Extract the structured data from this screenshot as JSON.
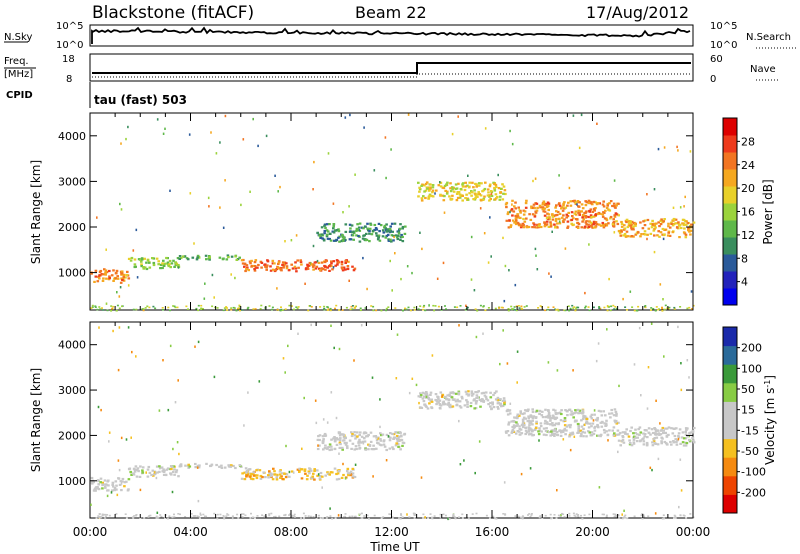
{
  "header": {
    "site": "Blackstone (fitACF)",
    "beam": "Beam 22",
    "date": "17/Aug/2012"
  },
  "panels": {
    "nsky": {
      "left_label": "N.Sky",
      "left_ticks": [
        "10^5",
        "10^0"
      ],
      "right_label": "N.Search",
      "right_ticks": [
        "10^5",
        "10^0"
      ]
    },
    "freq": {
      "left_label": "Freq.",
      "left_unit": "[MHz]",
      "left_ticks": [
        "18",
        "8"
      ],
      "right_label": "Nave",
      "right_ticks": [
        "60",
        "0"
      ]
    },
    "cpid": {
      "label": "CPID",
      "text": "tau (fast) 503"
    }
  },
  "chart_data": [
    {
      "type": "heatmap",
      "title": "",
      "xlabel": "Time UT",
      "ylabel": "Slant Range [km]",
      "x": [
        "00:00",
        "04:00",
        "08:00",
        "12:00",
        "16:00",
        "20:00",
        "00:00"
      ],
      "xlim": [
        0,
        24
      ],
      "y_ticks": [
        "4000",
        "3000",
        "2000",
        "1000"
      ],
      "ylim": [
        180,
        4500
      ],
      "colorbar": {
        "label": "Power [dB]",
        "ticks": [
          "28",
          "24",
          "20",
          "16",
          "12",
          "8",
          "4"
        ],
        "range": [
          0,
          30
        ],
        "colors": [
          "#0000ee",
          "#2222bb",
          "#2a5a9a",
          "#3a8e5e",
          "#5fb84a",
          "#9bd33c",
          "#e8d02a",
          "#f5a820",
          "#f27522",
          "#ee3a1c",
          "#dd0000"
        ]
      },
      "regions": [
        {
          "t": [
            0.0,
            1.5
          ],
          "r": [
            800,
            1100
          ],
          "v": 22
        },
        {
          "t": [
            1.5,
            3.5
          ],
          "r": [
            1100,
            1350
          ],
          "v": 14
        },
        {
          "t": [
            3.5,
            6.0
          ],
          "r": [
            1300,
            1400
          ],
          "v": 12
        },
        {
          "t": [
            6.0,
            10.5
          ],
          "r": [
            1050,
            1300
          ],
          "v": 24
        },
        {
          "t": [
            9.0,
            12.5
          ],
          "r": [
            1700,
            2100
          ],
          "v": 10
        },
        {
          "t": [
            13.0,
            16.5
          ],
          "r": [
            2600,
            3000
          ],
          "v": 18
        },
        {
          "t": [
            16.5,
            21.0
          ],
          "r": [
            2000,
            2600
          ],
          "v": 22
        },
        {
          "t": [
            21.0,
            24.0
          ],
          "r": [
            1800,
            2200
          ],
          "v": 20
        }
      ]
    },
    {
      "type": "heatmap",
      "title": "",
      "xlabel": "Time UT",
      "ylabel": "Slant Range [km]",
      "x": [
        "00:00",
        "04:00",
        "08:00",
        "12:00",
        "16:00",
        "20:00",
        "00:00"
      ],
      "xlim": [
        0,
        24
      ],
      "y_ticks": [
        "4000",
        "3000",
        "2000",
        "1000"
      ],
      "ylim": [
        180,
        4500
      ],
      "colorbar": {
        "label": "Velocity [m s^-1]",
        "ticks": [
          "200",
          "100",
          "50",
          "15",
          "-15",
          "-50",
          "-100",
          "-200"
        ],
        "range": [
          -250,
          250
        ],
        "colors": [
          "#dd0000",
          "#ee4400",
          "#f58a10",
          "#f5c020",
          "#c8c8c8",
          "#c8c8c8",
          "#88cc44",
          "#3a9a3a",
          "#2a6a9a",
          "#1a2aaa"
        ]
      },
      "regions": [
        {
          "t": [
            0.0,
            1.5
          ],
          "r": [
            800,
            1100
          ],
          "v": 0
        },
        {
          "t": [
            1.5,
            3.5
          ],
          "r": [
            1100,
            1350
          ],
          "v": 0
        },
        {
          "t": [
            3.5,
            6.0
          ],
          "r": [
            1300,
            1400
          ],
          "v": 0
        },
        {
          "t": [
            6.0,
            10.5
          ],
          "r": [
            1050,
            1300
          ],
          "v": -60
        },
        {
          "t": [
            9.0,
            12.5
          ],
          "r": [
            1700,
            2100
          ],
          "v": 0
        },
        {
          "t": [
            13.0,
            16.5
          ],
          "r": [
            2600,
            3000
          ],
          "v": 0
        },
        {
          "t": [
            16.5,
            21.0
          ],
          "r": [
            2000,
            2600
          ],
          "v": 0
        },
        {
          "t": [
            21.0,
            24.0
          ],
          "r": [
            1800,
            2200
          ],
          "v": 0
        }
      ]
    }
  ]
}
